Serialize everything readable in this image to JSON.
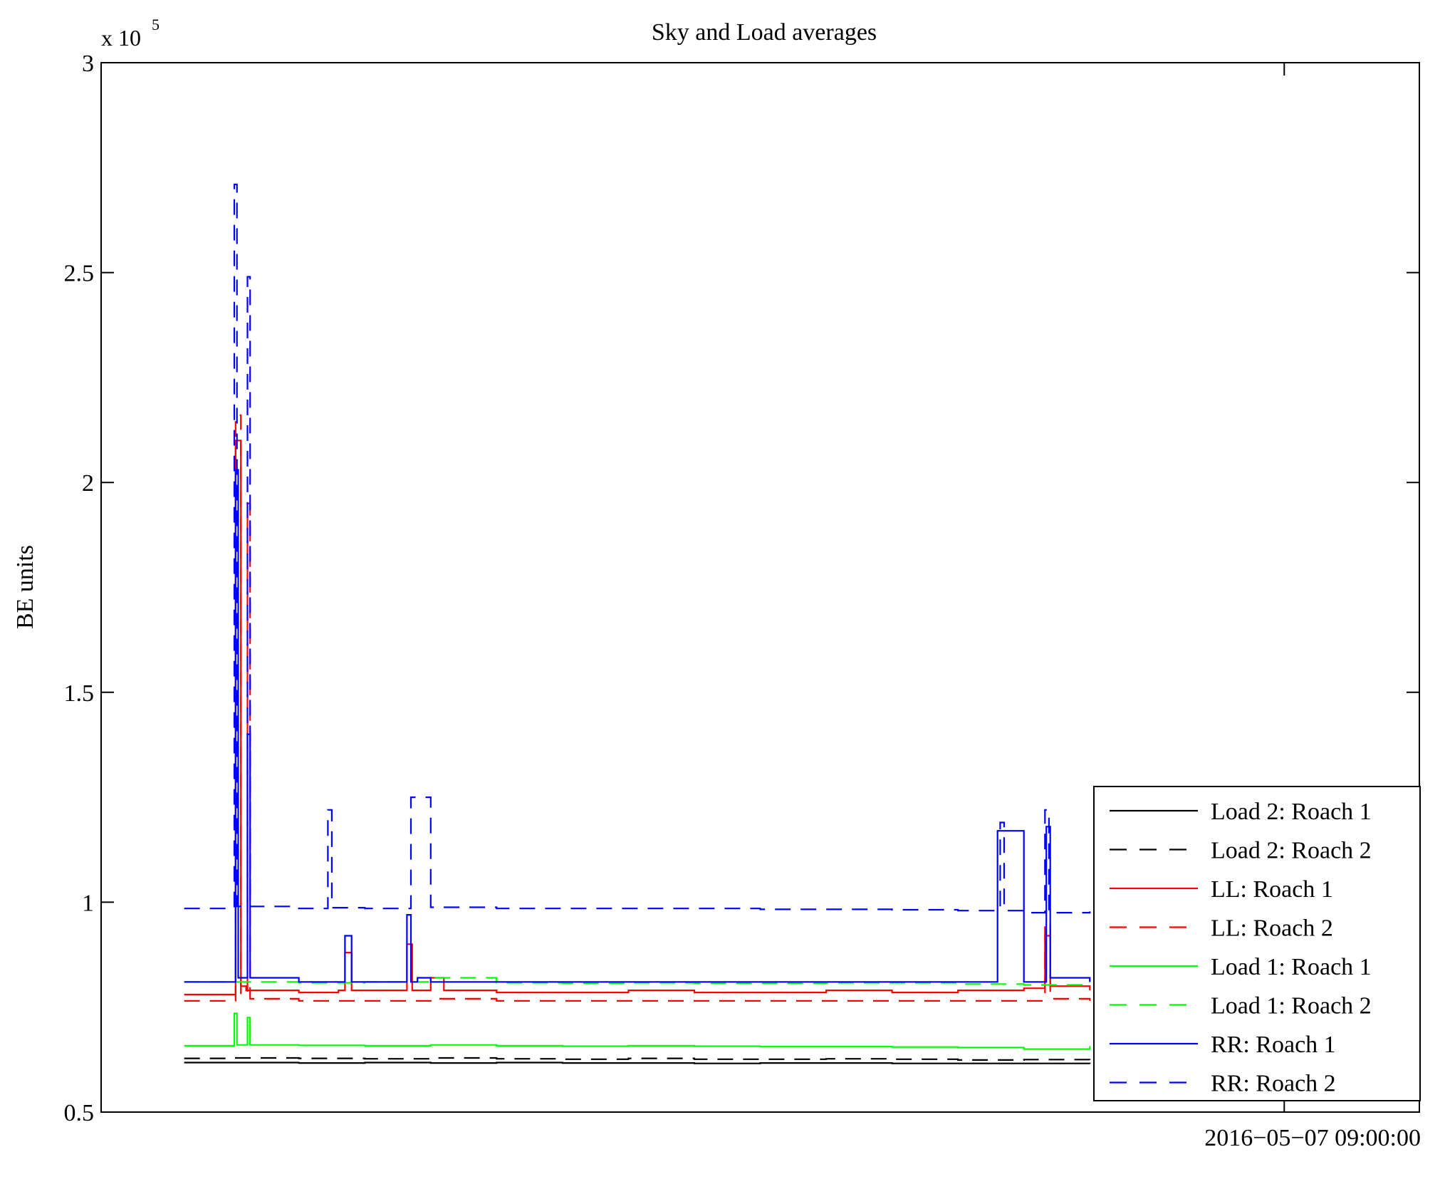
{
  "chart_data": {
    "type": "line",
    "title": "Sky and Load averages",
    "ylabel": "BE units",
    "xlabel": "",
    "exponent": {
      "base": "x 10",
      "power": "5"
    },
    "ylim": [
      50000,
      300000
    ],
    "yticks": [
      {
        "value": 50000,
        "label": "0.5"
      },
      {
        "value": 100000,
        "label": "1"
      },
      {
        "value": 150000,
        "label": "1.5"
      },
      {
        "value": 200000,
        "label": "2"
      },
      {
        "value": 250000,
        "label": "2.5"
      },
      {
        "value": 300000,
        "label": "3"
      }
    ],
    "xlim": [
      0,
      1
    ],
    "xticks": [
      {
        "value": 0.8975,
        "label": "2016−05−07 09:00:00"
      }
    ],
    "legend_position": "bottom-right",
    "grid": false,
    "series": [
      {
        "name": "Load 2: Roach 1",
        "color": "#000000",
        "dash": "solid",
        "x": [
          0.063,
          0.1,
          0.15,
          0.2,
          0.25,
          0.3,
          0.35,
          0.4,
          0.45,
          0.5,
          0.55,
          0.6,
          0.65,
          0.7,
          0.75
        ],
        "y": [
          61800,
          61800,
          61700,
          61800,
          61700,
          61800,
          61700,
          61700,
          61600,
          61700,
          61700,
          61600,
          61600,
          61600,
          61500
        ]
      },
      {
        "name": "Load 2: Roach 2",
        "color": "#000000",
        "dash": "dashed",
        "x": [
          0.063,
          0.1,
          0.15,
          0.2,
          0.25,
          0.3,
          0.35,
          0.4,
          0.45,
          0.5,
          0.55,
          0.6,
          0.65,
          0.7,
          0.75
        ],
        "y": [
          62800,
          62900,
          62800,
          62700,
          62900,
          62700,
          62600,
          62800,
          62600,
          62600,
          62700,
          62600,
          62400,
          62500,
          62300
        ]
      },
      {
        "name": "LL: Roach 1",
        "color": "#ff0000",
        "dash": "solid",
        "x": [
          0.063,
          0.1,
          0.102,
          0.106,
          0.11,
          0.15,
          0.18,
          0.185,
          0.19,
          0.21,
          0.232,
          0.236,
          0.25,
          0.26,
          0.3,
          0.35,
          0.4,
          0.45,
          0.5,
          0.55,
          0.6,
          0.65,
          0.68,
          0.7,
          0.716,
          0.72,
          0.75
        ],
        "y": [
          78000,
          78000,
          210000,
          80000,
          79000,
          78500,
          79000,
          88000,
          79000,
          79000,
          90000,
          79000,
          82000,
          79000,
          78500,
          78500,
          79000,
          78500,
          78500,
          79000,
          78500,
          79000,
          79000,
          79500,
          92000,
          80000,
          79000
        ]
      },
      {
        "name": "LL: Roach 2",
        "color": "#ff0000",
        "dash": "dashed",
        "x": [
          0.063,
          0.1,
          0.102,
          0.106,
          0.111,
          0.113,
          0.15,
          0.2,
          0.25,
          0.3,
          0.35,
          0.4,
          0.45,
          0.5,
          0.55,
          0.6,
          0.65,
          0.7,
          0.716,
          0.72,
          0.75
        ],
        "y": [
          76500,
          76500,
          216000,
          78000,
          195000,
          77000,
          76500,
          76500,
          77000,
          76500,
          76500,
          76500,
          76500,
          76500,
          76500,
          76500,
          76500,
          76500,
          95000,
          77000,
          76500
        ]
      },
      {
        "name": "Load 1: Roach 1",
        "color": "#00ff00",
        "dash": "solid",
        "x": [
          0.063,
          0.1,
          0.101,
          0.103,
          0.111,
          0.113,
          0.15,
          0.2,
          0.25,
          0.3,
          0.35,
          0.4,
          0.45,
          0.5,
          0.55,
          0.6,
          0.65,
          0.7,
          0.75
        ],
        "y": [
          65800,
          65800,
          73500,
          66000,
          72500,
          66000,
          65900,
          65800,
          66000,
          65800,
          65700,
          65800,
          65700,
          65600,
          65600,
          65500,
          65400,
          65000,
          65700
        ]
      },
      {
        "name": "Load 1: Roach 2",
        "color": "#00ff00",
        "dash": "dashed",
        "x": [
          0.063,
          0.1,
          0.15,
          0.2,
          0.25,
          0.3,
          0.35,
          0.4,
          0.45,
          0.5,
          0.55,
          0.6,
          0.65,
          0.7,
          0.75
        ],
        "y": [
          81000,
          81000,
          80800,
          81000,
          82000,
          80800,
          80700,
          80800,
          80700,
          80700,
          80800,
          80800,
          80500,
          80300,
          81000
        ]
      },
      {
        "name": "RR: Roach 1",
        "color": "#0000ff",
        "dash": "solid",
        "x": [
          0.063,
          0.1,
          0.102,
          0.104,
          0.111,
          0.113,
          0.15,
          0.18,
          0.185,
          0.19,
          0.21,
          0.232,
          0.235,
          0.24,
          0.25,
          0.3,
          0.35,
          0.4,
          0.45,
          0.5,
          0.55,
          0.6,
          0.65,
          0.676,
          0.68,
          0.7,
          0.717,
          0.72,
          0.75
        ],
        "y": [
          81000,
          81000,
          203000,
          82000,
          140000,
          82000,
          81000,
          81000,
          92000,
          81000,
          81000,
          97000,
          81000,
          82000,
          81000,
          81000,
          81000,
          81000,
          81000,
          81000,
          81000,
          81000,
          81000,
          81000,
          117000,
          81000,
          118000,
          82000,
          81000
        ]
      },
      {
        "name": "RR: Roach 2",
        "color": "#0000ff",
        "dash": "dashed",
        "x": [
          0.063,
          0.1,
          0.101,
          0.103,
          0.111,
          0.113,
          0.15,
          0.17,
          0.172,
          0.175,
          0.2,
          0.232,
          0.235,
          0.25,
          0.3,
          0.35,
          0.4,
          0.45,
          0.5,
          0.55,
          0.6,
          0.65,
          0.68,
          0.682,
          0.685,
          0.7,
          0.716,
          0.719,
          0.75
        ],
        "y": [
          98500,
          98500,
          271000,
          99000,
          249000,
          99000,
          98500,
          98500,
          122000,
          98700,
          98500,
          98500,
          125000,
          98800,
          98500,
          98500,
          98500,
          98500,
          98300,
          98300,
          98200,
          98000,
          98000,
          119000,
          98000,
          97500,
          122000,
          97500,
          97800
        ]
      }
    ]
  }
}
